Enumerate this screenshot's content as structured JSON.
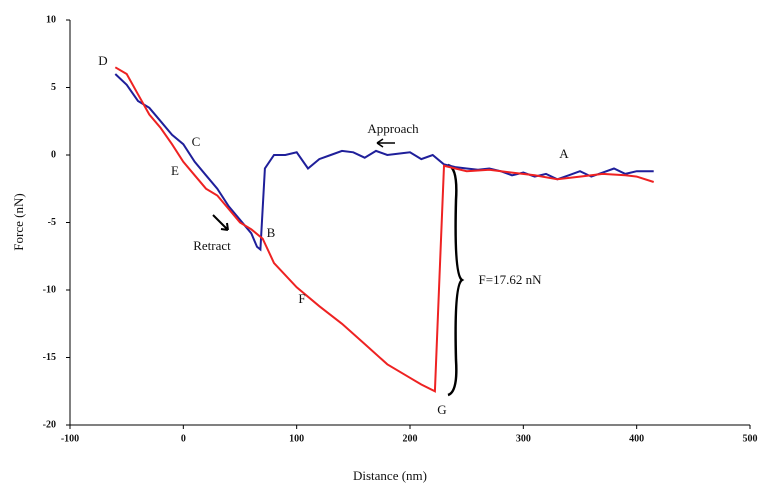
{
  "chart_data": {
    "type": "line",
    "x_label": "Distance (nm)",
    "y_label": "Force (nN)",
    "xlim": [
      -100,
      500
    ],
    "xticks": [
      -100,
      0,
      100,
      200,
      300,
      400,
      500
    ],
    "ylim": [
      -20,
      10
    ],
    "yticks": [
      -20,
      -15,
      -10,
      -5,
      0,
      5,
      10
    ],
    "grid": false,
    "series": [
      {
        "color": "#1f1f9a",
        "x": [
          -60,
          -50,
          -40,
          -30,
          -20,
          -10,
          0,
          10,
          20,
          30,
          40,
          50,
          60,
          65,
          68,
          72,
          80,
          90,
          100,
          110,
          120,
          130,
          140,
          150,
          160,
          170,
          180,
          190,
          200,
          210,
          220,
          230,
          240,
          250,
          260,
          270,
          280,
          290,
          300,
          310,
          320,
          330,
          340,
          350,
          360,
          370,
          380,
          390,
          400,
          415
        ],
        "values": [
          6,
          5.2,
          4,
          3.5,
          2.5,
          1.5,
          0.8,
          -0.5,
          -1.5,
          -2.5,
          -3.8,
          -4.8,
          -5.8,
          -6.8,
          -7,
          -1,
          0,
          0,
          0.2,
          -1,
          -0.3,
          0,
          0.3,
          0.2,
          -0.2,
          0.3,
          0,
          0.1,
          0.2,
          -0.3,
          0,
          -0.7,
          -0.9,
          -1,
          -1.1,
          -1,
          -1.2,
          -1.5,
          -1.3,
          -1.6,
          -1.4,
          -1.8,
          -1.5,
          -1.2,
          -1.6,
          -1.3,
          -1,
          -1.4,
          -1.2,
          -1.2
        ]
      },
      {
        "color": "#ee2222",
        "x": [
          -60,
          -50,
          -40,
          -30,
          -20,
          -10,
          0,
          10,
          20,
          30,
          40,
          50,
          60,
          70,
          80,
          100,
          120,
          140,
          160,
          180,
          200,
          210,
          222,
          226,
          230,
          250,
          270,
          290,
          310,
          330,
          350,
          370,
          390,
          400,
          415
        ],
        "values": [
          6.5,
          6,
          4.5,
          3,
          2,
          0.8,
          -0.5,
          -1.5,
          -2.5,
          -3,
          -4,
          -5,
          -5.5,
          -6.2,
          -8,
          -9.8,
          -11.2,
          -12.5,
          -14,
          -15.5,
          -16.5,
          -17,
          -17.5,
          -9,
          -0.8,
          -1.2,
          -1.1,
          -1.3,
          -1.5,
          -1.8,
          -1.6,
          -1.4,
          -1.5,
          -1.6,
          -2
        ]
      }
    ],
    "annotations": [
      "D",
      "C",
      "E",
      "B",
      "F",
      "G",
      "A",
      "Approach",
      "Retract",
      "F=17.62 nN"
    ]
  }
}
